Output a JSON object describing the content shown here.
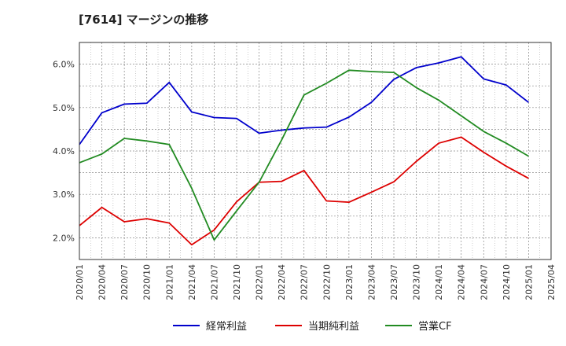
{
  "chart_data": {
    "type": "line",
    "title": "[7614]  マージンの推移",
    "x": [
      "2020/01",
      "2020/04",
      "2020/07",
      "2020/10",
      "2021/01",
      "2021/04",
      "2021/07",
      "2021/10",
      "2022/01",
      "2022/04",
      "2022/07",
      "2022/10",
      "2023/01",
      "2023/04",
      "2023/07",
      "2023/10",
      "2024/01",
      "2024/04",
      "2024/07",
      "2024/10",
      "2025/01",
      "2025/04"
    ],
    "ylim": [
      1.5,
      6.5
    ],
    "yticks": [
      2.0,
      3.0,
      4.0,
      5.0,
      6.0
    ],
    "ytick_labels": [
      "2.0%",
      "3.0%",
      "4.0%",
      "5.0%",
      "6.0%"
    ],
    "grid": true,
    "legend_position": "bottom",
    "series": [
      {
        "name": "経常利益",
        "color": "#0000cc",
        "values": [
          4.15,
          4.88,
          5.08,
          5.1,
          5.58,
          4.9,
          4.77,
          4.75,
          4.41,
          4.48,
          4.53,
          4.55,
          4.78,
          5.12,
          5.65,
          5.92,
          6.03,
          6.17,
          5.66,
          5.52,
          5.12,
          null
        ]
      },
      {
        "name": "当期純利益",
        "color": "#dd0000",
        "values": [
          2.28,
          2.7,
          2.37,
          2.44,
          2.34,
          1.84,
          2.18,
          2.83,
          3.28,
          3.3,
          3.55,
          2.85,
          2.82,
          3.05,
          3.29,
          3.76,
          4.18,
          4.32,
          3.97,
          3.65,
          3.37,
          null
        ]
      },
      {
        "name": "営業CF",
        "color": "#228b22",
        "values": [
          3.73,
          3.93,
          4.29,
          4.23,
          4.15,
          3.14,
          1.95,
          2.62,
          3.28,
          4.25,
          5.29,
          5.56,
          5.86,
          5.83,
          5.81,
          5.46,
          5.17,
          4.81,
          4.45,
          4.18,
          3.88,
          null
        ]
      }
    ]
  }
}
